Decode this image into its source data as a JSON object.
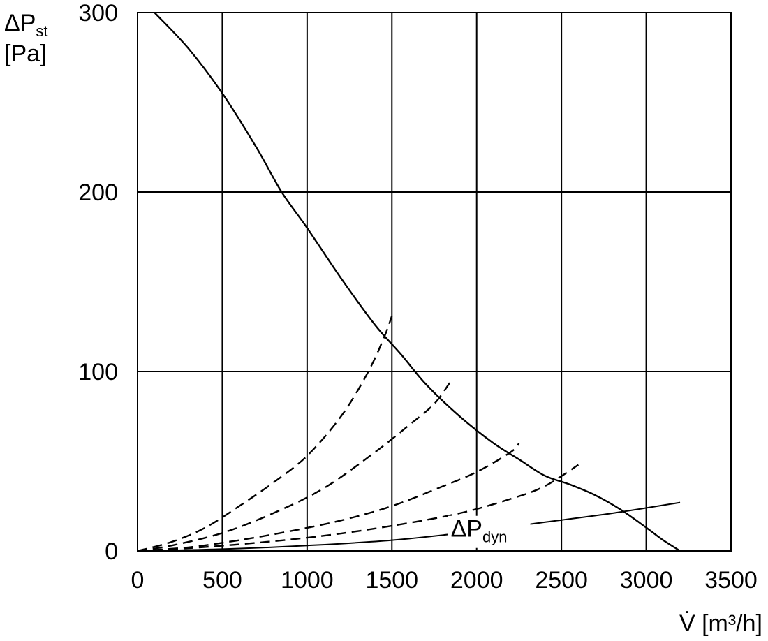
{
  "chart_data": {
    "type": "line",
    "title": "",
    "xlabel": {
      "main": "V̇ [m³/h]"
    },
    "ylabel": {
      "symbol": "ΔP",
      "sub": "st",
      "unit": "[Pa]"
    },
    "xlim": [
      0,
      3500
    ],
    "ylim": [
      0,
      300
    ],
    "x_ticks": [
      "0",
      "500",
      "1000",
      "1500",
      "2000",
      "2500",
      "3000",
      "3500"
    ],
    "y_ticks": [
      "0",
      "100",
      "200",
      "300"
    ],
    "grid": true,
    "series": [
      {
        "style": "solid",
        "x": [
          100,
          300,
          500,
          700,
          850,
          1000,
          1200,
          1400,
          1550,
          1700,
          1900,
          2100,
          2250,
          2400,
          2550,
          2700,
          2850,
          3000,
          3100,
          3200
        ],
        "values": [
          300,
          280,
          255,
          225,
          200,
          180,
          152,
          126,
          110,
          93,
          75,
          60,
          51,
          42,
          37,
          31,
          23,
          13,
          6,
          0
        ]
      },
      {
        "style": "dashed",
        "x": [
          0,
          200,
          400,
          600,
          800,
          1000,
          1200,
          1350,
          1450,
          1500
        ],
        "values": [
          0,
          5,
          13,
          25,
          38,
          53,
          75,
          98,
          118,
          131
        ]
      },
      {
        "style": "dashed",
        "x": [
          0,
          200,
          500,
          800,
          1100,
          1400,
          1600,
          1750,
          1850
        ],
        "values": [
          0,
          3,
          10,
          21,
          35,
          55,
          70,
          82,
          95
        ]
      },
      {
        "style": "dashed",
        "x": [
          0,
          300,
          600,
          900,
          1200,
          1500,
          1800,
          2000,
          2200,
          2250
        ],
        "values": [
          0,
          2,
          6,
          11,
          17,
          25,
          36,
          44,
          55,
          60
        ]
      },
      {
        "style": "dashed",
        "x": [
          0,
          300,
          700,
          1100,
          1500,
          1900,
          2200,
          2400,
          2600
        ],
        "values": [
          0,
          1.5,
          4.5,
          8.5,
          14,
          21,
          29,
          36,
          48
        ]
      },
      {
        "name": "ΔPdyn",
        "style": "solid-thin",
        "x": [
          0,
          500,
          1000,
          1500,
          2000,
          2400,
          2800,
          3200
        ],
        "values": [
          0,
          1,
          3,
          6,
          11,
          16,
          21,
          27
        ]
      }
    ],
    "annotations": [
      {
        "text": "ΔP",
        "sub": "dyn",
        "x": 2300,
        "y": 11
      }
    ]
  }
}
